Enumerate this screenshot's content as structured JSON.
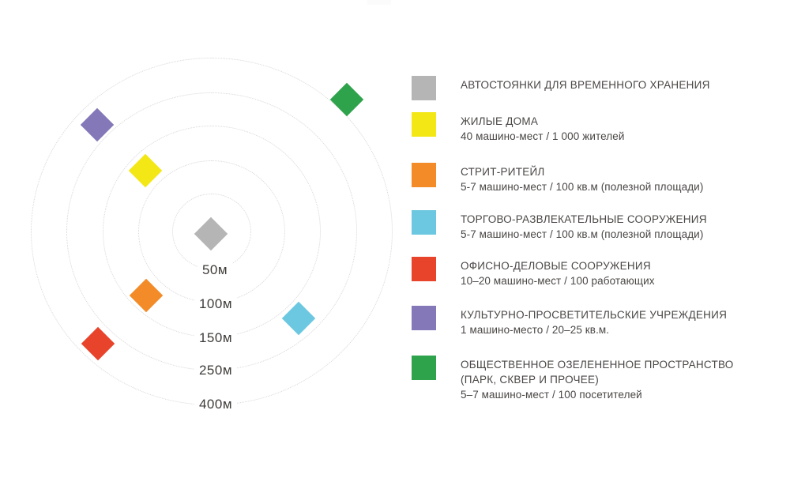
{
  "diagram": {
    "type": "radial-distance-diagram",
    "rings": [
      {
        "label": "50м",
        "distance_m": 50
      },
      {
        "label": "100м",
        "distance_m": 100
      },
      {
        "label": "150м",
        "distance_m": 150
      },
      {
        "label": "250м",
        "distance_m": 250
      },
      {
        "label": "400м",
        "distance_m": 400
      }
    ],
    "markers": [
      {
        "name": "автостоянки для временного хранения",
        "color": "#b5b5b5",
        "position": "центр"
      },
      {
        "name": "жилые дома",
        "color": "#f3e715",
        "position": "между 100м и 150м, вверх-влево"
      },
      {
        "name": "культурно-просветительские учреждения",
        "color": "#8478b8",
        "position": "между 250м и 400м, вверх-влево"
      },
      {
        "name": "общественное озелененное пространство",
        "color": "#2fa34c",
        "position": "около 400м, вверх-вправо"
      },
      {
        "name": "стрит-ритейл",
        "color": "#f28b28",
        "position": "между 100м и 150м, вниз-влево"
      },
      {
        "name": "офисно-деловые сооружения",
        "color": "#e8432b",
        "position": "между 250м и 400м, вниз-влево"
      },
      {
        "name": "торгово-развлекательные сооружения",
        "color": "#6cc8e0",
        "position": "между 150м и 250м, вниз-вправо"
      }
    ]
  },
  "legend": {
    "items": [
      {
        "name": "temporary-parking",
        "color": "#b5b5b5",
        "title": "АВТОСТОЯНКИ ДЛЯ ВРЕМЕННОГО ХРАНЕНИЯ"
      },
      {
        "name": "residential",
        "color": "#f3e715",
        "title": "ЖИЛЫЕ ДОМА",
        "subtitle": "40 машино-мест / 1 000 жителей"
      },
      {
        "name": "street-retail",
        "color": "#f28b28",
        "title": "СТРИТ-РИТЕЙЛ",
        "subtitle": "5-7 машино-мест / 100 кв.м (полезной площади)"
      },
      {
        "name": "retail-entertainment",
        "color": "#6cc8e0",
        "title": "ТОРГОВО-РАЗВЛЕКАТЕЛЬНЫЕ СООРУЖЕНИЯ",
        "subtitle": "5-7 машино-мест / 100 кв.м (полезной площади)"
      },
      {
        "name": "office-business",
        "color": "#e8432b",
        "title": "ОФИСНО-ДЕЛОВЫЕ СООРУЖЕНИЯ",
        "subtitle": "10–20 машино-мест / 100 работающих"
      },
      {
        "name": "cultural-educational",
        "color": "#8478b8",
        "title": "КУЛЬТУРНО-ПРОСВЕТИТЕЛЬСКИЕ УЧРЕЖДЕНИЯ",
        "subtitle": "1 машино-место / 20–25 кв.м."
      },
      {
        "name": "public-green-space",
        "color": "#2fa34c",
        "title": "ОБЩЕСТВЕННОЕ ОЗЕЛЕНЕННОЕ ПРОСТРАНСТВО",
        "title_line2": "(ПАРК, СКВЕР И ПРОЧЕЕ)",
        "subtitle": "5–7 машино-мест / 100 посетителей"
      }
    ]
  }
}
